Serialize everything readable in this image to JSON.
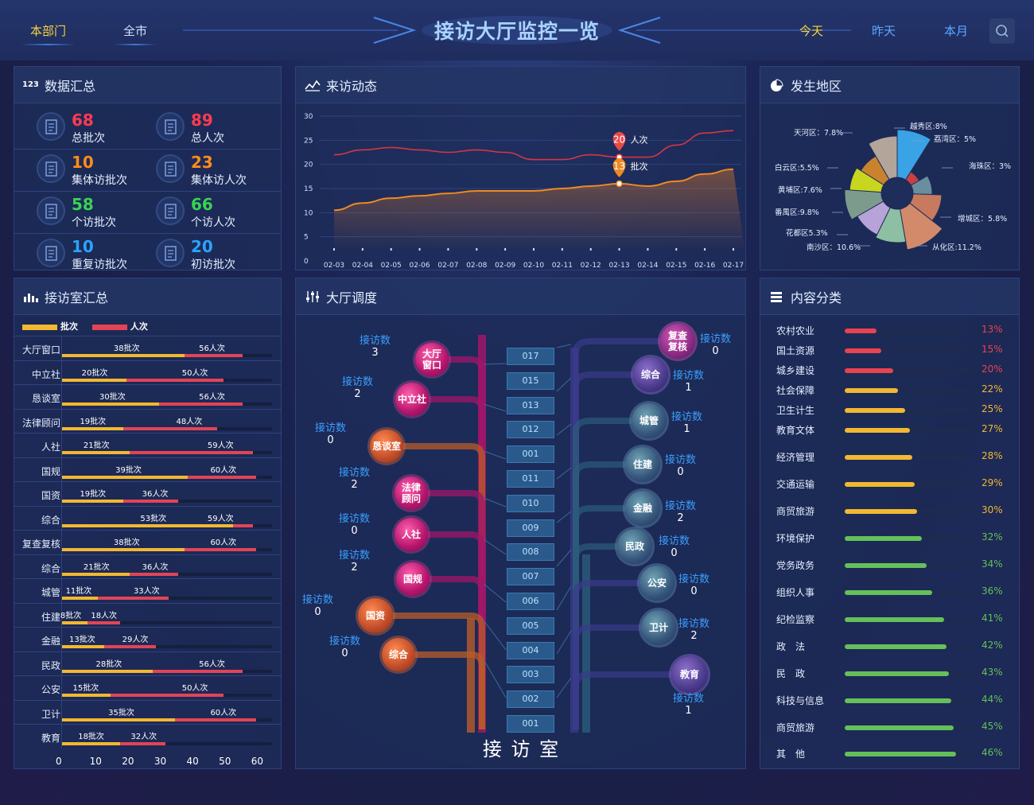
{
  "nav": {
    "left_tabs": [
      "本部门",
      "全市"
    ],
    "title": "接访大厅监控一览",
    "right_tabs": [
      "今天",
      "昨天",
      "本月"
    ]
  },
  "summary": {
    "title": "数据汇总",
    "stats": [
      {
        "value": "68",
        "label": "总批次",
        "color": "#ff3b4f",
        "icon": "document-icon"
      },
      {
        "value": "89",
        "label": "总人次",
        "color": "#ff3b4f",
        "icon": "edit-doc-icon"
      },
      {
        "value": "10",
        "label": "集体访批次",
        "color": "#ff8c1a",
        "icon": "list-doc-icon"
      },
      {
        "value": "23",
        "label": "集体访人次",
        "color": "#ff8c1a",
        "icon": "form-doc-icon"
      },
      {
        "value": "58",
        "label": "个访批次",
        "color": "#39d353",
        "icon": "person-card-icon"
      },
      {
        "value": "66",
        "label": "个访人次",
        "color": "#39d353",
        "icon": "person-doc-icon"
      },
      {
        "value": "10",
        "label": "重复访批次",
        "color": "#2aa3ff",
        "icon": "repeat-doc-icon"
      },
      {
        "value": "20",
        "label": "初访批次",
        "color": "#2aa3ff",
        "icon": "first-doc-icon"
      }
    ]
  },
  "trend": {
    "title": "来访动态",
    "yticks": [
      "30",
      "25",
      "20",
      "15",
      "10",
      "5",
      "0"
    ],
    "markers": [
      {
        "value": "20",
        "label": "人次"
      },
      {
        "value": "13",
        "label": "批次"
      }
    ]
  },
  "region": {
    "title": "发生地区",
    "labels": [
      "天河区：7.8%",
      "越秀区:8%",
      "荔湾区：5%",
      "海珠区：3%",
      "白云区:5.5%",
      "黄埔区:7.6%",
      "番禺区:9.8%",
      "增城区：5.8%",
      "花都区5.3%",
      "南沙区：10.6%",
      "从化区:11.2%"
    ]
  },
  "rooms_summary": {
    "title": "接访室汇总",
    "legend": [
      "批次",
      "人次"
    ],
    "rows": [
      {
        "label": "大厅窗口",
        "batch": 38,
        "people": 56,
        "batch_text": "38批次",
        "people_text": "56人次"
      },
      {
        "label": "中立社",
        "batch": 20,
        "people": 50,
        "batch_text": "20批次",
        "people_text": "50人次"
      },
      {
        "label": "恳谈室",
        "batch": 30,
        "people": 56,
        "batch_text": "30批次",
        "people_text": "56人次"
      },
      {
        "label": "法律顾问",
        "batch": 19,
        "people": 48,
        "batch_text": "19批次",
        "people_text": "48人次"
      },
      {
        "label": "人社",
        "batch": 21,
        "people": 59,
        "batch_text": "21批次",
        "people_text": "59人次"
      },
      {
        "label": "国规",
        "batch": 39,
        "people": 60,
        "batch_text": "39批次",
        "people_text": "60人次"
      },
      {
        "label": "国资",
        "batch": 19,
        "people": 36,
        "batch_text": "19批次",
        "people_text": "36人次"
      },
      {
        "label": "综合",
        "batch": 53,
        "people": 59,
        "batch_text": "53批次",
        "people_text": "59人次"
      },
      {
        "label": "复查复核",
        "batch": 38,
        "people": 60,
        "batch_text": "38批次",
        "people_text": "60人次"
      },
      {
        "label": "综合",
        "batch": 21,
        "people": 36,
        "batch_text": "21批次",
        "people_text": "36人次"
      },
      {
        "label": "城管",
        "batch": 11,
        "people": 33,
        "batch_text": "11批次",
        "people_text": "33人次"
      },
      {
        "label": "住建",
        "batch": 8,
        "people": 18,
        "batch_text": "8批次",
        "people_text": "18人次"
      },
      {
        "label": "金融",
        "batch": 13,
        "people": 29,
        "batch_text": "13批次",
        "people_text": "29人次"
      },
      {
        "label": "民政",
        "batch": 28,
        "people": 56,
        "batch_text": "28批次",
        "people_text": "56人次"
      },
      {
        "label": "公安",
        "batch": 15,
        "people": 50,
        "batch_text": "15批次",
        "people_text": "50人次"
      },
      {
        "label": "卫计",
        "batch": 35,
        "people": 60,
        "batch_text": "35批次",
        "people_text": "60人次"
      },
      {
        "label": "教育",
        "batch": 18,
        "people": 32,
        "batch_text": "18批次",
        "people_text": "32人次"
      }
    ],
    "axis": [
      "0",
      "10",
      "20",
      "30",
      "40",
      "50",
      "60"
    ]
  },
  "dispatch": {
    "title": "大厅调度",
    "visit_label": "接访数",
    "room_caption": "接 访 室",
    "rooms": [
      "017",
      "015",
      "013",
      "012",
      "001",
      "011",
      "010",
      "009",
      "008",
      "007",
      "006",
      "005",
      "004",
      "003",
      "002",
      "001"
    ],
    "left_nodes": [
      {
        "name": "大厅\n窗口",
        "count": "3"
      },
      {
        "name": "中立社",
        "count": "2"
      },
      {
        "name": "恳谈室",
        "count": "0"
      },
      {
        "name": "法律\n顾问",
        "count": "2"
      },
      {
        "name": "人社",
        "count": "0"
      },
      {
        "name": "国规",
        "count": "2"
      },
      {
        "name": "国资",
        "count": "0"
      },
      {
        "name": "综合",
        "count": "0"
      }
    ],
    "right_nodes": [
      {
        "name": "复查\n复核",
        "count": "0"
      },
      {
        "name": "综合",
        "count": "1"
      },
      {
        "name": "城管",
        "count": "1"
      },
      {
        "name": "住建",
        "count": "0"
      },
      {
        "name": "金融",
        "count": "2"
      },
      {
        "name": "民政",
        "count": "0"
      },
      {
        "name": "公安",
        "count": "0"
      },
      {
        "name": "卫计",
        "count": "2"
      },
      {
        "name": "教育",
        "count": "1"
      }
    ]
  },
  "content": {
    "title": "内容分类",
    "items": [
      {
        "label": "农村农业",
        "pct": "13%",
        "value": 13,
        "color": "#e8434f"
      },
      {
        "label": "国土资源",
        "pct": "15%",
        "value": 15,
        "color": "#e8434f"
      },
      {
        "label": "城乡建设",
        "pct": "20%",
        "value": 20,
        "color": "#e8434f"
      },
      {
        "label": "社会保障",
        "pct": "22%",
        "value": 22,
        "color": "#f1b832"
      },
      {
        "label": "卫生计生",
        "pct": "25%",
        "value": 25,
        "color": "#f1b832"
      },
      {
        "label": "教育文体",
        "pct": "27%",
        "value": 27,
        "color": "#f1b832"
      },
      {
        "label": "经济管理",
        "pct": "28%",
        "value": 28,
        "color": "#f1b832"
      },
      {
        "label": "交通运输",
        "pct": "29%",
        "value": 29,
        "color": "#f1b832"
      },
      {
        "label": "商贸旅游",
        "pct": "30%",
        "value": 30,
        "color": "#f1b832"
      },
      {
        "label": "环境保护",
        "pct": "32%",
        "value": 32,
        "color": "#64c05a"
      },
      {
        "label": "党务政务",
        "pct": "34%",
        "value": 34,
        "color": "#64c05a"
      },
      {
        "label": "组织人事",
        "pct": "36%",
        "value": 36,
        "color": "#64c05a"
      },
      {
        "label": "纪检监察",
        "pct": "41%",
        "value": 41,
        "color": "#64c05a"
      },
      {
        "label": "政　法",
        "pct": "42%",
        "value": 42,
        "color": "#64c05a"
      },
      {
        "label": "民　政",
        "pct": "43%",
        "value": 43,
        "color": "#64c05a"
      },
      {
        "label": "科技与信息",
        "pct": "44%",
        "value": 44,
        "color": "#64c05a"
      },
      {
        "label": "商贸旅游",
        "pct": "45%",
        "value": 45,
        "color": "#64c05a"
      },
      {
        "label": "其　他",
        "pct": "46%",
        "value": 46,
        "color": "#64c05a"
      }
    ]
  },
  "chart_data": {
    "type": "line",
    "x": [
      "02-03",
      "02-04",
      "02-05",
      "02-06",
      "02-07",
      "02-08",
      "02-09",
      "02-10",
      "02-11",
      "02-12",
      "02-13",
      "02-14",
      "02-15",
      "02-16",
      "02-17"
    ],
    "series": [
      {
        "name": "人次",
        "values": [
          22,
          23,
          23.5,
          23,
          22.5,
          23,
          22.5,
          21,
          21,
          22,
          21.5,
          21.5,
          24,
          26.5,
          27
        ],
        "color": "#d63545"
      },
      {
        "name": "批次",
        "values": [
          10.5,
          12,
          13,
          13.5,
          14,
          14.5,
          14.5,
          14.5,
          15,
          15.5,
          16,
          15.5,
          16.5,
          18,
          19
        ],
        "color": "#ef8a22"
      }
    ],
    "ylim": [
      0,
      30
    ]
  }
}
